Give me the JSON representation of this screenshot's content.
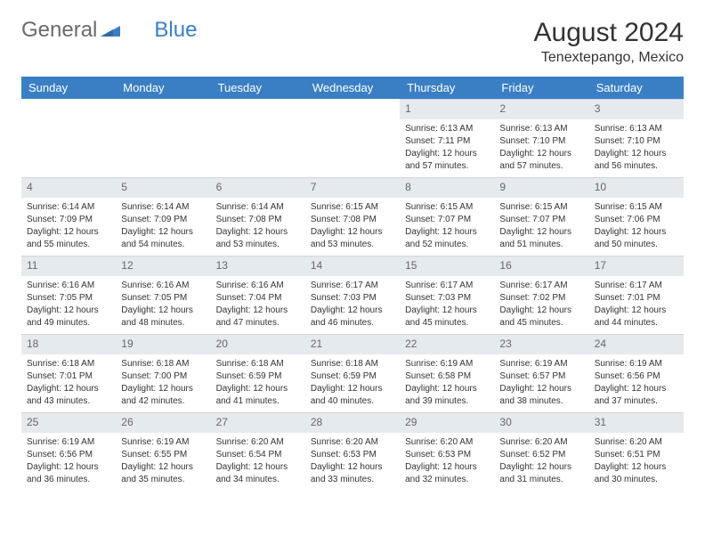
{
  "logo": {
    "text1": "General",
    "text2": "Blue"
  },
  "title": "August 2024",
  "location": "Tenextepango, Mexico",
  "colors": {
    "header_bg": "#3a7fc4",
    "header_text": "#ffffff",
    "daybar_bg": "#e5eaef",
    "daybar_text": "#666666",
    "body_text": "#333333"
  },
  "weekdays": [
    "Sunday",
    "Monday",
    "Tuesday",
    "Wednesday",
    "Thursday",
    "Friday",
    "Saturday"
  ],
  "weeks": [
    [
      {
        "empty": true
      },
      {
        "empty": true
      },
      {
        "empty": true
      },
      {
        "empty": true
      },
      {
        "day": "1",
        "sunrise": "Sunrise: 6:13 AM",
        "sunset": "Sunset: 7:11 PM",
        "daylight1": "Daylight: 12 hours",
        "daylight2": "and 57 minutes."
      },
      {
        "day": "2",
        "sunrise": "Sunrise: 6:13 AM",
        "sunset": "Sunset: 7:10 PM",
        "daylight1": "Daylight: 12 hours",
        "daylight2": "and 57 minutes."
      },
      {
        "day": "3",
        "sunrise": "Sunrise: 6:13 AM",
        "sunset": "Sunset: 7:10 PM",
        "daylight1": "Daylight: 12 hours",
        "daylight2": "and 56 minutes."
      }
    ],
    [
      {
        "day": "4",
        "sunrise": "Sunrise: 6:14 AM",
        "sunset": "Sunset: 7:09 PM",
        "daylight1": "Daylight: 12 hours",
        "daylight2": "and 55 minutes."
      },
      {
        "day": "5",
        "sunrise": "Sunrise: 6:14 AM",
        "sunset": "Sunset: 7:09 PM",
        "daylight1": "Daylight: 12 hours",
        "daylight2": "and 54 minutes."
      },
      {
        "day": "6",
        "sunrise": "Sunrise: 6:14 AM",
        "sunset": "Sunset: 7:08 PM",
        "daylight1": "Daylight: 12 hours",
        "daylight2": "and 53 minutes."
      },
      {
        "day": "7",
        "sunrise": "Sunrise: 6:15 AM",
        "sunset": "Sunset: 7:08 PM",
        "daylight1": "Daylight: 12 hours",
        "daylight2": "and 53 minutes."
      },
      {
        "day": "8",
        "sunrise": "Sunrise: 6:15 AM",
        "sunset": "Sunset: 7:07 PM",
        "daylight1": "Daylight: 12 hours",
        "daylight2": "and 52 minutes."
      },
      {
        "day": "9",
        "sunrise": "Sunrise: 6:15 AM",
        "sunset": "Sunset: 7:07 PM",
        "daylight1": "Daylight: 12 hours",
        "daylight2": "and 51 minutes."
      },
      {
        "day": "10",
        "sunrise": "Sunrise: 6:15 AM",
        "sunset": "Sunset: 7:06 PM",
        "daylight1": "Daylight: 12 hours",
        "daylight2": "and 50 minutes."
      }
    ],
    [
      {
        "day": "11",
        "sunrise": "Sunrise: 6:16 AM",
        "sunset": "Sunset: 7:05 PM",
        "daylight1": "Daylight: 12 hours",
        "daylight2": "and 49 minutes."
      },
      {
        "day": "12",
        "sunrise": "Sunrise: 6:16 AM",
        "sunset": "Sunset: 7:05 PM",
        "daylight1": "Daylight: 12 hours",
        "daylight2": "and 48 minutes."
      },
      {
        "day": "13",
        "sunrise": "Sunrise: 6:16 AM",
        "sunset": "Sunset: 7:04 PM",
        "daylight1": "Daylight: 12 hours",
        "daylight2": "and 47 minutes."
      },
      {
        "day": "14",
        "sunrise": "Sunrise: 6:17 AM",
        "sunset": "Sunset: 7:03 PM",
        "daylight1": "Daylight: 12 hours",
        "daylight2": "and 46 minutes."
      },
      {
        "day": "15",
        "sunrise": "Sunrise: 6:17 AM",
        "sunset": "Sunset: 7:03 PM",
        "daylight1": "Daylight: 12 hours",
        "daylight2": "and 45 minutes."
      },
      {
        "day": "16",
        "sunrise": "Sunrise: 6:17 AM",
        "sunset": "Sunset: 7:02 PM",
        "daylight1": "Daylight: 12 hours",
        "daylight2": "and 45 minutes."
      },
      {
        "day": "17",
        "sunrise": "Sunrise: 6:17 AM",
        "sunset": "Sunset: 7:01 PM",
        "daylight1": "Daylight: 12 hours",
        "daylight2": "and 44 minutes."
      }
    ],
    [
      {
        "day": "18",
        "sunrise": "Sunrise: 6:18 AM",
        "sunset": "Sunset: 7:01 PM",
        "daylight1": "Daylight: 12 hours",
        "daylight2": "and 43 minutes."
      },
      {
        "day": "19",
        "sunrise": "Sunrise: 6:18 AM",
        "sunset": "Sunset: 7:00 PM",
        "daylight1": "Daylight: 12 hours",
        "daylight2": "and 42 minutes."
      },
      {
        "day": "20",
        "sunrise": "Sunrise: 6:18 AM",
        "sunset": "Sunset: 6:59 PM",
        "daylight1": "Daylight: 12 hours",
        "daylight2": "and 41 minutes."
      },
      {
        "day": "21",
        "sunrise": "Sunrise: 6:18 AM",
        "sunset": "Sunset: 6:59 PM",
        "daylight1": "Daylight: 12 hours",
        "daylight2": "and 40 minutes."
      },
      {
        "day": "22",
        "sunrise": "Sunrise: 6:19 AM",
        "sunset": "Sunset: 6:58 PM",
        "daylight1": "Daylight: 12 hours",
        "daylight2": "and 39 minutes."
      },
      {
        "day": "23",
        "sunrise": "Sunrise: 6:19 AM",
        "sunset": "Sunset: 6:57 PM",
        "daylight1": "Daylight: 12 hours",
        "daylight2": "and 38 minutes."
      },
      {
        "day": "24",
        "sunrise": "Sunrise: 6:19 AM",
        "sunset": "Sunset: 6:56 PM",
        "daylight1": "Daylight: 12 hours",
        "daylight2": "and 37 minutes."
      }
    ],
    [
      {
        "day": "25",
        "sunrise": "Sunrise: 6:19 AM",
        "sunset": "Sunset: 6:56 PM",
        "daylight1": "Daylight: 12 hours",
        "daylight2": "and 36 minutes."
      },
      {
        "day": "26",
        "sunrise": "Sunrise: 6:19 AM",
        "sunset": "Sunset: 6:55 PM",
        "daylight1": "Daylight: 12 hours",
        "daylight2": "and 35 minutes."
      },
      {
        "day": "27",
        "sunrise": "Sunrise: 6:20 AM",
        "sunset": "Sunset: 6:54 PM",
        "daylight1": "Daylight: 12 hours",
        "daylight2": "and 34 minutes."
      },
      {
        "day": "28",
        "sunrise": "Sunrise: 6:20 AM",
        "sunset": "Sunset: 6:53 PM",
        "daylight1": "Daylight: 12 hours",
        "daylight2": "and 33 minutes."
      },
      {
        "day": "29",
        "sunrise": "Sunrise: 6:20 AM",
        "sunset": "Sunset: 6:53 PM",
        "daylight1": "Daylight: 12 hours",
        "daylight2": "and 32 minutes."
      },
      {
        "day": "30",
        "sunrise": "Sunrise: 6:20 AM",
        "sunset": "Sunset: 6:52 PM",
        "daylight1": "Daylight: 12 hours",
        "daylight2": "and 31 minutes."
      },
      {
        "day": "31",
        "sunrise": "Sunrise: 6:20 AM",
        "sunset": "Sunset: 6:51 PM",
        "daylight1": "Daylight: 12 hours",
        "daylight2": "and 30 minutes."
      }
    ]
  ]
}
